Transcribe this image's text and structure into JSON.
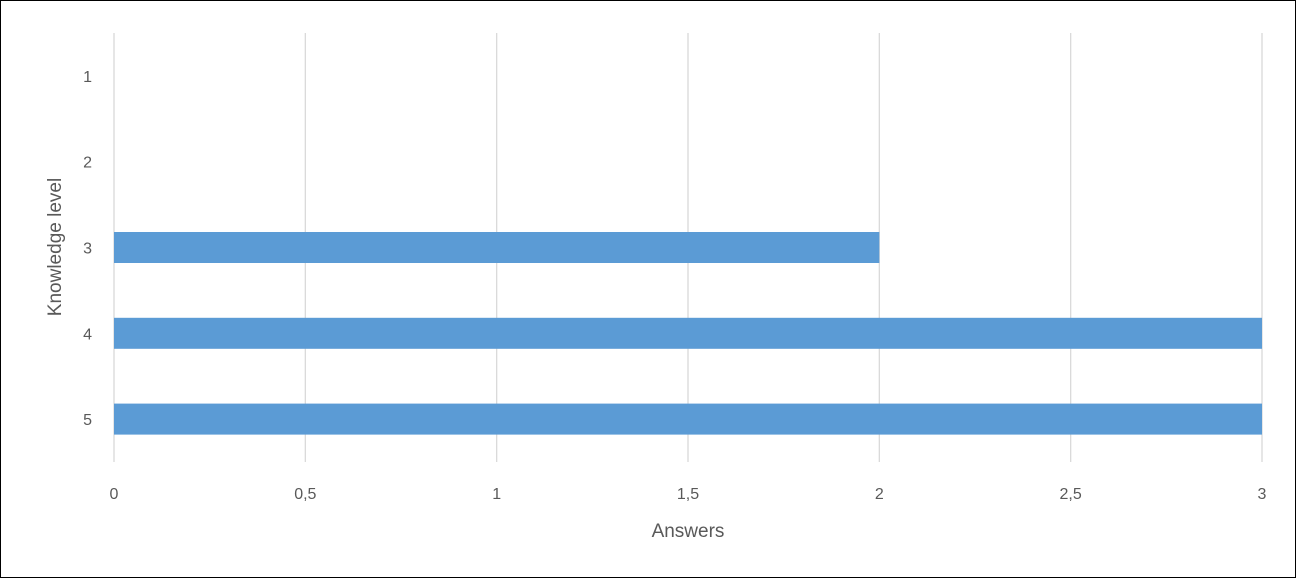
{
  "chart_data": {
    "type": "bar",
    "orientation": "horizontal",
    "categories": [
      "1",
      "2",
      "3",
      "4",
      "5"
    ],
    "values": [
      0,
      0,
      2,
      3,
      3
    ],
    "xlabel": "Answers",
    "ylabel": "Knowledge level",
    "xlim": [
      0,
      3
    ],
    "x_ticks": [
      "0",
      "0,5",
      "1",
      "1,5",
      "2",
      "2,5",
      "3"
    ],
    "grid": "vertical",
    "legend": "none",
    "colors": {
      "bar": "#5B9BD5",
      "grid": "#D9D9D9",
      "text": "#595959"
    }
  }
}
